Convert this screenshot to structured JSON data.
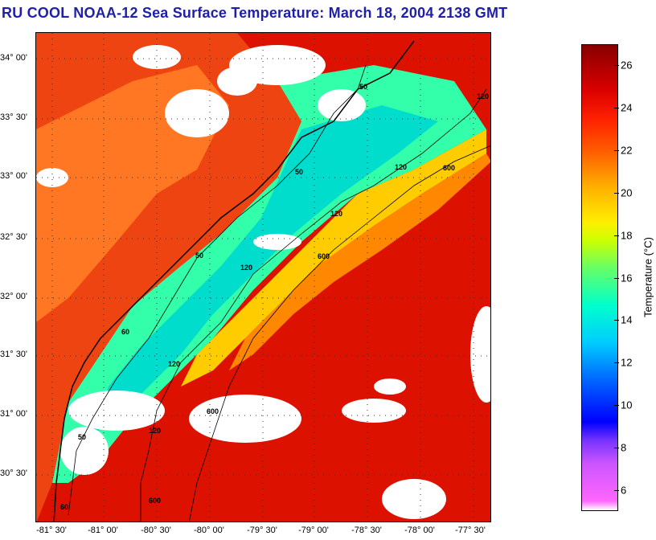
{
  "title": "RU COOL  NOAA-12  Sea Surface Temperature:  March 18, 2004 2138 GMT",
  "map": {
    "lat_labels": [
      "34° 00'",
      "33° 30'",
      "33° 00'",
      "32° 30'",
      "32° 00'",
      "31° 30'",
      "31° 00'",
      "30° 30'"
    ],
    "lon_labels": [
      "-81° 30'",
      "-81° 00'",
      "-80° 30'",
      "-80° 00'",
      "-79° 30'",
      "-79° 00'",
      "-78° 30'",
      "-78° 00'",
      "-77° 30'"
    ],
    "isobaths": [
      "50",
      "50",
      "50",
      "60",
      "50",
      "60",
      "120",
      "120",
      "120",
      "120",
      "120",
      "120",
      "600",
      "600",
      "600",
      "600"
    ]
  },
  "colorbar": {
    "title": "Temperature (°C)",
    "ticks": [
      "26",
      "24",
      "22",
      "20",
      "18",
      "16",
      "14",
      "12",
      "10",
      "8",
      "6"
    ],
    "min": 5,
    "max": 27,
    "colors": {
      "warm": "#aa0000",
      "mid": "#ffee00",
      "cool": "#00ccff",
      "cold": "#0000ff",
      "coldest": "#ff66ff"
    }
  }
}
